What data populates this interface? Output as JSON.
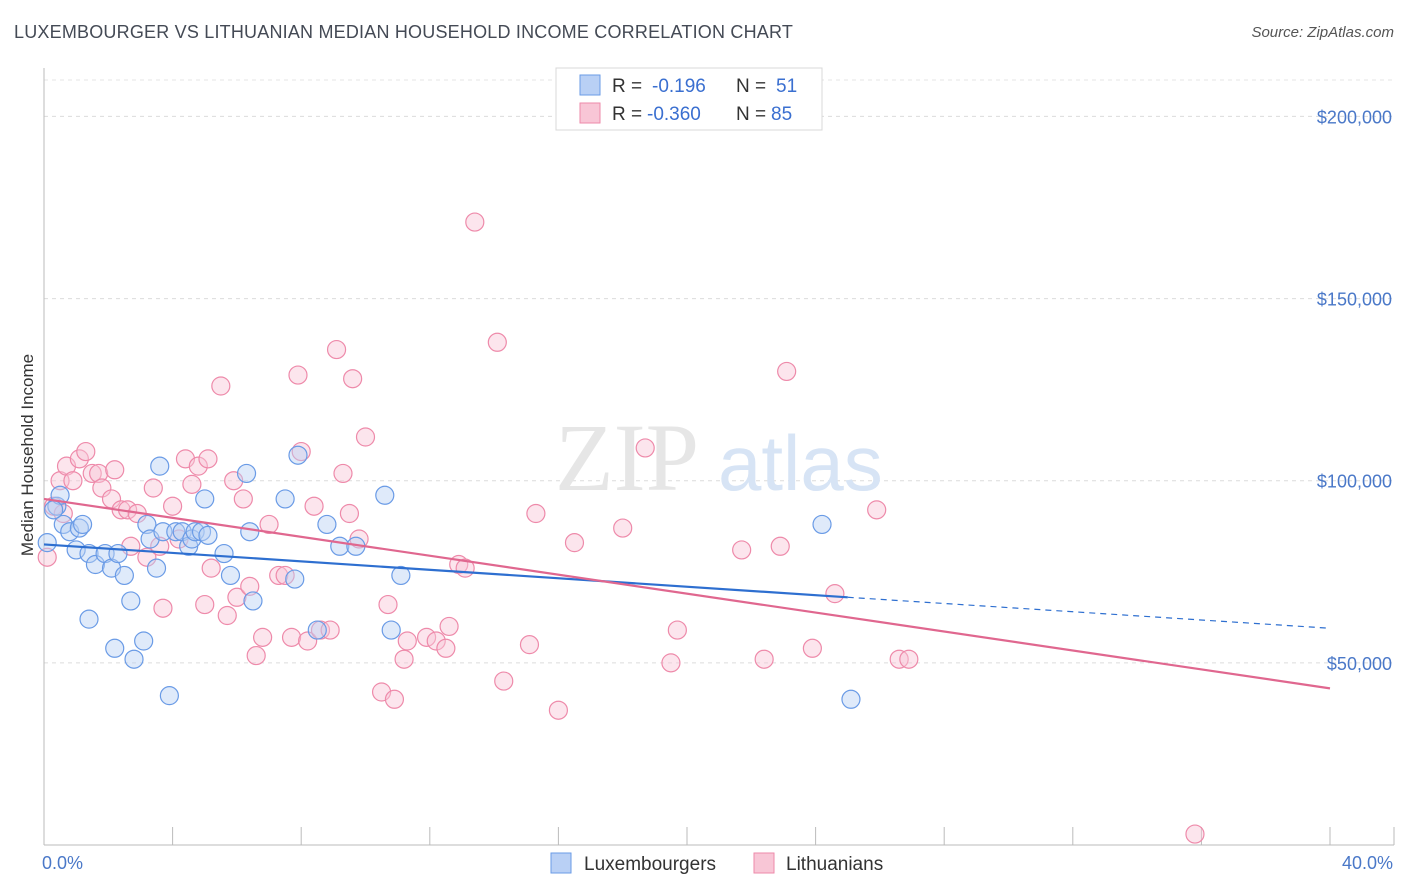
{
  "title": "LUXEMBOURGER VS LITHUANIAN MEDIAN HOUSEHOLD INCOME CORRELATION CHART",
  "source": "Source: ZipAtlas.com",
  "watermark": {
    "zip": "ZIP",
    "atlas": "atlas"
  },
  "colors": {
    "blue": "#6a9be6",
    "blue_fill": "#b9d0f5",
    "pink": "#ee8aaa",
    "pink_fill": "#f8c6d6",
    "blue_line": "#2e6fd0",
    "pink_line": "#e0678f",
    "tick_text": "#4a78c8"
  },
  "legend": {
    "rows": [
      {
        "r_label": "R =",
        "r_value": "-0.196",
        "n_label": "N =",
        "n_value": "51"
      },
      {
        "r_label": "R =",
        "r_value": "-0.360",
        "n_label": "N =",
        "n_value": "85"
      }
    ]
  },
  "chart_data": {
    "type": "scatter",
    "title": "LUXEMBOURGER VS LITHUANIAN MEDIAN HOUSEHOLD INCOME CORRELATION CHART",
    "xlabel": "",
    "ylabel": "Median Household Income",
    "xlim": [
      0,
      40
    ],
    "ylim": [
      0,
      210000
    ],
    "x_tick_labels": [
      "0.0%",
      "40.0%"
    ],
    "y_ticks": [
      50000,
      100000,
      150000,
      200000
    ],
    "y_tick_labels": [
      "$50,000",
      "$100,000",
      "$150,000",
      "$200,000"
    ],
    "grid": true,
    "legend_position": "top-center",
    "series": [
      {
        "name": "Luxembourgers",
        "r": -0.196,
        "n": 51,
        "trend": {
          "x": [
            0,
            25
          ],
          "y": [
            82500,
            68000
          ],
          "dashed_x": [
            25,
            40
          ],
          "dashed_y": [
            68000,
            59500
          ]
        },
        "points": [
          [
            0.1,
            83000
          ],
          [
            0.4,
            93000
          ],
          [
            0.5,
            96000
          ],
          [
            0.6,
            88000
          ],
          [
            0.8,
            86000
          ],
          [
            1.1,
            87000
          ],
          [
            1.2,
            88000
          ],
          [
            1.0,
            81000
          ],
          [
            1.4,
            80000
          ],
          [
            1.6,
            77000
          ],
          [
            1.9,
            80000
          ],
          [
            2.1,
            76000
          ],
          [
            2.3,
            80000
          ],
          [
            2.5,
            74000
          ],
          [
            1.4,
            62000
          ],
          [
            2.2,
            54000
          ],
          [
            2.7,
            67000
          ],
          [
            2.8,
            51000
          ],
          [
            3.1,
            56000
          ],
          [
            3.2,
            88000
          ],
          [
            3.3,
            84000
          ],
          [
            3.5,
            76000
          ],
          [
            3.6,
            104000
          ],
          [
            3.7,
            86000
          ],
          [
            4.1,
            86000
          ],
          [
            4.3,
            86000
          ],
          [
            4.5,
            82000
          ],
          [
            4.6,
            84000
          ],
          [
            4.7,
            86000
          ],
          [
            4.9,
            86000
          ],
          [
            5.0,
            95000
          ],
          [
            5.1,
            85000
          ],
          [
            5.6,
            80000
          ],
          [
            3.9,
            41000
          ],
          [
            6.3,
            102000
          ],
          [
            6.4,
            86000
          ],
          [
            6.5,
            67000
          ],
          [
            7.5,
            95000
          ],
          [
            7.8,
            73000
          ],
          [
            7.9,
            107000
          ],
          [
            8.5,
            59000
          ],
          [
            8.8,
            88000
          ],
          [
            9.2,
            82000
          ],
          [
            9.7,
            82000
          ],
          [
            10.6,
            96000
          ],
          [
            10.8,
            59000
          ],
          [
            11.1,
            74000
          ],
          [
            24.2,
            88000
          ],
          [
            25.1,
            40000
          ],
          [
            0.3,
            92000
          ],
          [
            5.8,
            74000
          ]
        ]
      },
      {
        "name": "Lithuanians",
        "r": -0.36,
        "n": 85,
        "trend": {
          "x": [
            0,
            40
          ],
          "y": [
            95000,
            43000
          ]
        },
        "points": [
          [
            0.1,
            79000
          ],
          [
            0.3,
            93000
          ],
          [
            0.5,
            100000
          ],
          [
            0.7,
            104000
          ],
          [
            0.9,
            100000
          ],
          [
            1.1,
            106000
          ],
          [
            1.3,
            108000
          ],
          [
            1.5,
            102000
          ],
          [
            1.7,
            102000
          ],
          [
            1.8,
            98000
          ],
          [
            2.1,
            95000
          ],
          [
            2.2,
            103000
          ],
          [
            2.4,
            92000
          ],
          [
            2.6,
            92000
          ],
          [
            2.7,
            82000
          ],
          [
            2.9,
            91000
          ],
          [
            3.2,
            79000
          ],
          [
            3.4,
            98000
          ],
          [
            3.6,
            82000
          ],
          [
            3.7,
            65000
          ],
          [
            4.0,
            93000
          ],
          [
            4.2,
            84000
          ],
          [
            4.4,
            106000
          ],
          [
            4.6,
            99000
          ],
          [
            4.8,
            104000
          ],
          [
            5.0,
            66000
          ],
          [
            5.1,
            106000
          ],
          [
            5.2,
            76000
          ],
          [
            5.5,
            126000
          ],
          [
            5.7,
            63000
          ],
          [
            5.9,
            100000
          ],
          [
            6.0,
            68000
          ],
          [
            6.2,
            95000
          ],
          [
            6.4,
            71000
          ],
          [
            6.6,
            52000
          ],
          [
            6.8,
            57000
          ],
          [
            7.0,
            88000
          ],
          [
            7.3,
            74000
          ],
          [
            7.5,
            74000
          ],
          [
            7.7,
            57000
          ],
          [
            7.9,
            129000
          ],
          [
            8.0,
            108000
          ],
          [
            8.2,
            56000
          ],
          [
            8.4,
            93000
          ],
          [
            8.6,
            59000
          ],
          [
            8.9,
            59000
          ],
          [
            9.1,
            136000
          ],
          [
            9.3,
            102000
          ],
          [
            9.5,
            91000
          ],
          [
            9.6,
            128000
          ],
          [
            9.8,
            84000
          ],
          [
            10.0,
            112000
          ],
          [
            10.5,
            42000
          ],
          [
            10.7,
            66000
          ],
          [
            10.9,
            40000
          ],
          [
            11.2,
            51000
          ],
          [
            11.3,
            56000
          ],
          [
            11.9,
            57000
          ],
          [
            12.2,
            56000
          ],
          [
            12.5,
            54000
          ],
          [
            12.6,
            60000
          ],
          [
            12.9,
            77000
          ],
          [
            13.1,
            76000
          ],
          [
            13.4,
            171000
          ],
          [
            14.1,
            138000
          ],
          [
            14.3,
            45000
          ],
          [
            15.1,
            55000
          ],
          [
            15.3,
            91000
          ],
          [
            16.0,
            37000
          ],
          [
            16.5,
            83000
          ],
          [
            18.0,
            87000
          ],
          [
            18.7,
            109000
          ],
          [
            19.5,
            50000
          ],
          [
            19.7,
            59000
          ],
          [
            21.7,
            81000
          ],
          [
            22.4,
            51000
          ],
          [
            22.9,
            82000
          ],
          [
            23.1,
            130000
          ],
          [
            23.9,
            54000
          ],
          [
            24.6,
            69000
          ],
          [
            25.9,
            92000
          ],
          [
            26.6,
            51000
          ],
          [
            26.9,
            51000
          ],
          [
            35.8,
            3000
          ],
          [
            0.6,
            91000
          ]
        ]
      }
    ]
  }
}
